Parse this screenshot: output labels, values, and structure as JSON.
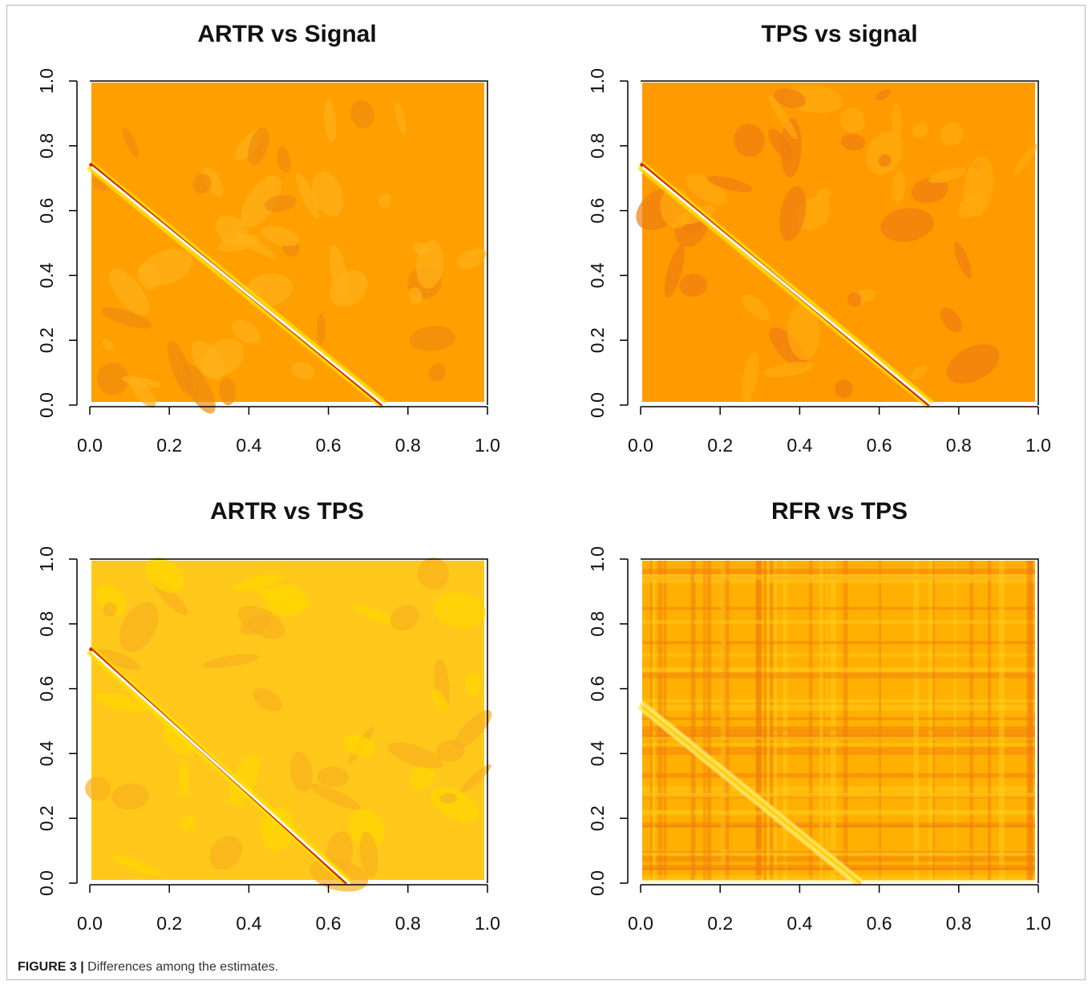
{
  "figure": {
    "caption_label": "FIGURE 3 |",
    "caption_text": " Differences among the estimates."
  },
  "chart_data": [
    {
      "type": "heatmap",
      "title": "ARTR vs Signal",
      "xlabel": "",
      "ylabel": "",
      "xlim": [
        0,
        1
      ],
      "ylim": [
        0,
        1
      ],
      "x_ticks": [
        "0.0",
        "0.2",
        "0.4",
        "0.6",
        "0.8",
        "1.0"
      ],
      "y_ticks": [
        "0.0",
        "0.2",
        "0.4",
        "0.6",
        "0.8",
        "1.0"
      ],
      "palette": [
        "#ff9f00",
        "#ffb21a",
        "#f08c10"
      ],
      "diagonal": {
        "x_intercept": 0.74,
        "y_intercept": 0.74,
        "colors": [
          "#d62400",
          "#ffffff",
          "#ffe000"
        ]
      },
      "grid": false,
      "legend": "none"
    },
    {
      "type": "heatmap",
      "title": "TPS vs signal",
      "xlabel": "",
      "ylabel": "",
      "xlim": [
        0,
        1
      ],
      "ylim": [
        0,
        1
      ],
      "x_ticks": [
        "0.0",
        "0.2",
        "0.4",
        "0.6",
        "0.8",
        "1.0"
      ],
      "y_ticks": [
        "0.0",
        "0.2",
        "0.4",
        "0.6",
        "0.8",
        "1.0"
      ],
      "palette": [
        "#ff9a00",
        "#ffab10",
        "#f07d10"
      ],
      "diagonal": {
        "x_intercept": 0.73,
        "y_intercept": 0.74,
        "colors": [
          "#d62400",
          "#ffffff",
          "#ffe000"
        ]
      },
      "grid": false,
      "legend": "none"
    },
    {
      "type": "heatmap",
      "title": "ARTR vs TPS",
      "xlabel": "",
      "ylabel": "",
      "xlim": [
        0,
        1
      ],
      "ylim": [
        0,
        1
      ],
      "x_ticks": [
        "0.0",
        "0.2",
        "0.4",
        "0.6",
        "0.8",
        "1.0"
      ],
      "y_ticks": [
        "0.0",
        "0.2",
        "0.4",
        "0.6",
        "0.8",
        "1.0"
      ],
      "palette": [
        "#ffc81a",
        "#ffd700",
        "#f8b020"
      ],
      "diagonal": {
        "x_intercept": 0.65,
        "y_intercept": 0.72,
        "colors": [
          "#d62400",
          "#ffffff",
          "#ffe000"
        ]
      },
      "grid": false,
      "legend": "none"
    },
    {
      "type": "heatmap",
      "title": "RFR vs TPS",
      "xlabel": "",
      "ylabel": "",
      "xlim": [
        0,
        1
      ],
      "ylim": [
        0,
        1
      ],
      "x_ticks": [
        "0.0",
        "0.2",
        "0.4",
        "0.6",
        "0.8",
        "1.0"
      ],
      "y_ticks": [
        "0.0",
        "0.2",
        "0.4",
        "0.6",
        "0.8",
        "1.0"
      ],
      "palette": [
        "#ffb000",
        "#ffd21a",
        "#f07a10"
      ],
      "diagonal": {
        "x_intercept": 0.55,
        "y_intercept": 0.55,
        "colors": [
          "#ffe86a",
          "#ffd000",
          "#ffe86a"
        ]
      },
      "grid": false,
      "legend": "none"
    }
  ]
}
